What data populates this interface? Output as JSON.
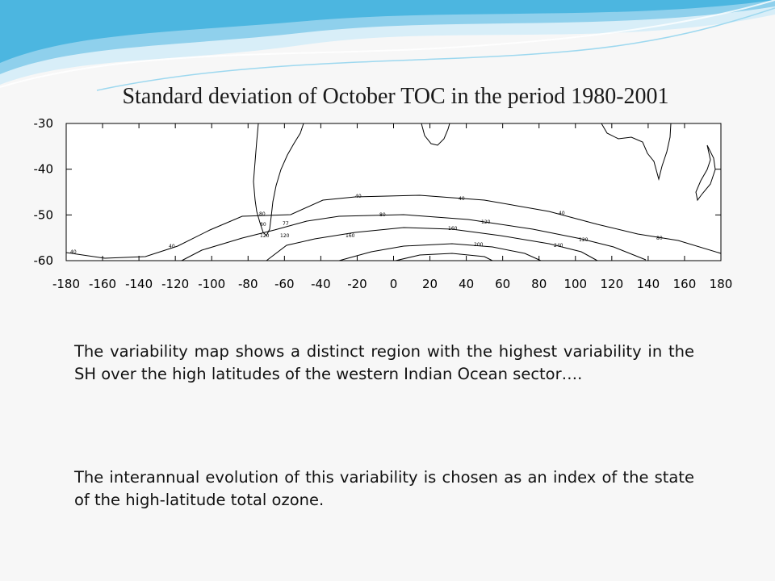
{
  "slide": {
    "title": "Standard deviation of October TOC in the period 1980-2001",
    "paragraphs": [
      "The variability map shows a distinct region with the highest variability in the SH over the high latitudes of the western Indian Ocean sector….",
      "The interannual evolution of this variability is chosen as an index of the state of the high-latitude total ozone."
    ]
  },
  "map": {
    "x_ticks": [
      "-180",
      "-160",
      "-140",
      "-120",
      "-100",
      "-80",
      "-60",
      "-40",
      "-20",
      "0",
      "20",
      "40",
      "60",
      "80",
      "100",
      "120",
      "140",
      "160",
      "180"
    ],
    "y_ticks": [
      "-30",
      "-40",
      "-50",
      "-60"
    ],
    "contour_labels": [
      "40",
      "40",
      "40",
      "40",
      "40",
      "80",
      "80",
      "80",
      "80",
      "120",
      "120",
      "120",
      "160",
      "160",
      "200",
      "240",
      "77",
      "120"
    ],
    "colors": {
      "line": "#000000",
      "background": "#ffffff",
      "wave_light": "#bfe6f5",
      "wave_dark": "#4cb6e0"
    }
  }
}
